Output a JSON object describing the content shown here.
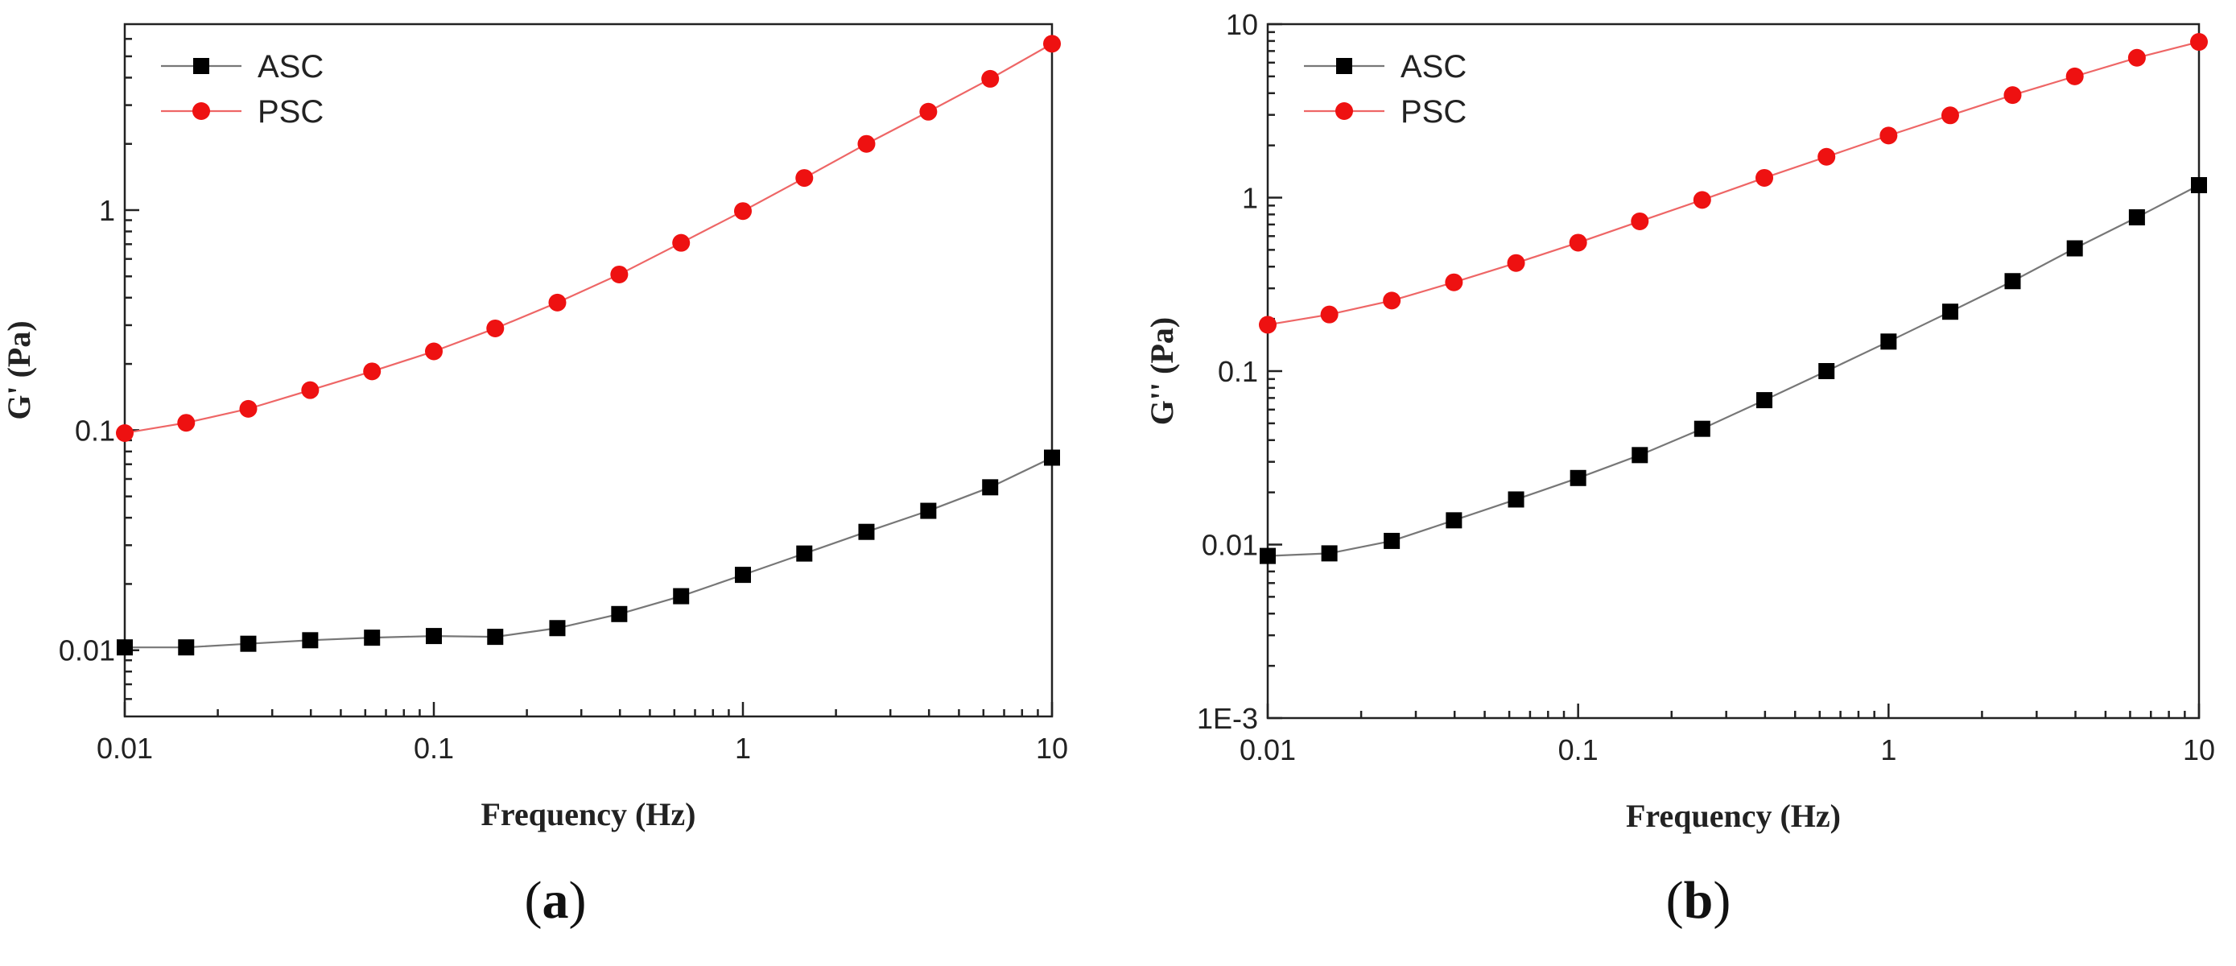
{
  "chart_data": [
    {
      "type": "line",
      "panel_label": "a",
      "xlabel": "Frequency (Hz)",
      "ylabel": "G' (Pa)",
      "xscale": "log",
      "yscale": "log",
      "xlim": [
        0.01,
        10
      ],
      "ylim": [
        0.005,
        7
      ],
      "xticks": [
        0.01,
        0.1,
        1,
        10
      ],
      "xtick_labels": [
        "0.01",
        "0.1",
        "1",
        "10"
      ],
      "yticks": [
        0.01,
        0.1,
        1
      ],
      "ytick_labels": [
        "0.01",
        "0.1",
        "1"
      ],
      "legend_position": "top-left",
      "x": [
        0.01,
        0.0158,
        0.0251,
        0.0398,
        0.0631,
        0.1,
        0.158,
        0.251,
        0.398,
        0.631,
        1,
        1.58,
        2.51,
        3.98,
        6.31,
        10
      ],
      "series": [
        {
          "name": "ASC",
          "marker": "square",
          "color": "#000000",
          "line_color": "#777777",
          "values": [
            0.0103,
            0.0103,
            0.0107,
            0.0111,
            0.0114,
            0.0116,
            0.0115,
            0.0126,
            0.0146,
            0.0176,
            0.022,
            0.0275,
            0.0345,
            0.043,
            0.055,
            0.075
          ]
        },
        {
          "name": "PSC",
          "marker": "circle",
          "color": "#ee1111",
          "line_color": "#ee6666",
          "values": [
            0.097,
            0.108,
            0.125,
            0.152,
            0.185,
            0.228,
            0.29,
            0.38,
            0.51,
            0.71,
            0.99,
            1.4,
            2.0,
            2.8,
            3.95,
            5.7
          ]
        }
      ]
    },
    {
      "type": "line",
      "panel_label": "b",
      "xlabel": "Frequency (Hz)",
      "ylabel": "G'' (Pa)",
      "xscale": "log",
      "yscale": "log",
      "xlim": [
        0.01,
        10
      ],
      "ylim": [
        0.001,
        10
      ],
      "xticks": [
        0.01,
        0.1,
        1,
        10
      ],
      "xtick_labels": [
        "0.01",
        "0.1",
        "1",
        "10"
      ],
      "yticks": [
        0.001,
        0.01,
        0.1,
        1,
        10
      ],
      "ytick_labels": [
        "1E-3",
        "0.01",
        "0.1",
        "1",
        "10"
      ],
      "legend_position": "top-left",
      "x": [
        0.01,
        0.0158,
        0.0251,
        0.0398,
        0.0631,
        0.1,
        0.158,
        0.251,
        0.398,
        0.631,
        1,
        1.58,
        2.51,
        3.98,
        6.31,
        10
      ],
      "series": [
        {
          "name": "ASC",
          "marker": "square",
          "color": "#000000",
          "line_color": "#777777",
          "values": [
            0.0086,
            0.0089,
            0.0105,
            0.0138,
            0.0182,
            0.0242,
            0.0328,
            0.0465,
            0.068,
            0.1,
            0.148,
            0.22,
            0.33,
            0.51,
            0.77,
            1.18
          ]
        },
        {
          "name": "PSC",
          "marker": "circle",
          "color": "#ee1111",
          "line_color": "#ee6666",
          "values": [
            0.185,
            0.212,
            0.255,
            0.325,
            0.42,
            0.55,
            0.73,
            0.97,
            1.3,
            1.72,
            2.28,
            2.98,
            3.9,
            5.0,
            6.4,
            7.9
          ]
        }
      ]
    }
  ]
}
